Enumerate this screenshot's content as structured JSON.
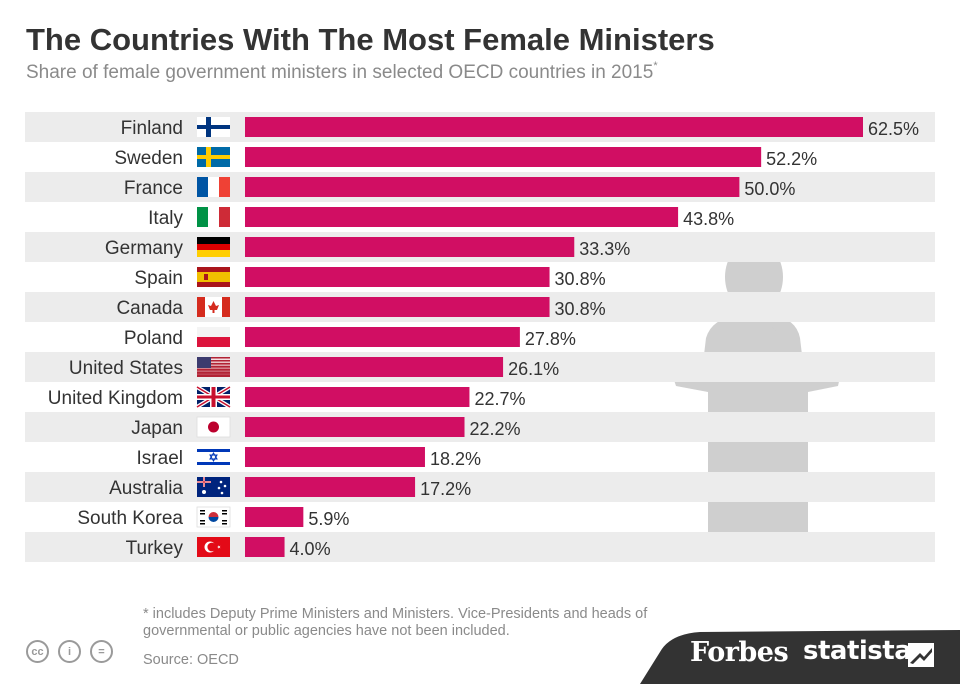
{
  "header": {
    "title": "The Countries With The Most Female Ministers",
    "subtitle": "Share of female government ministers in selected OECD countries in 2015",
    "subtitle_mark": "*"
  },
  "chart_data": {
    "type": "bar",
    "orientation": "horizontal",
    "title": "The Countries With The Most Female Ministers",
    "subtitle": "Share of female government ministers in selected OECD countries in 2015*",
    "categories": [
      "Finland",
      "Sweden",
      "France",
      "Italy",
      "Germany",
      "Spain",
      "Canada",
      "Poland",
      "United States",
      "United Kingdom",
      "Japan",
      "Israel",
      "Australia",
      "South Korea",
      "Turkey"
    ],
    "values": [
      62.5,
      52.2,
      50.0,
      43.8,
      33.3,
      30.8,
      30.8,
      27.8,
      26.1,
      22.7,
      22.2,
      18.2,
      17.2,
      5.9,
      4.0
    ],
    "labels": [
      "62.5%",
      "52.2%",
      "50.0%",
      "43.8%",
      "33.3%",
      "30.8%",
      "30.8%",
      "27.8%",
      "26.1%",
      "22.7%",
      "22.2%",
      "18.2%",
      "17.2%",
      "5.9%",
      "4.0%"
    ],
    "flags": [
      "finland-flag-icon",
      "sweden-flag-icon",
      "france-flag-icon",
      "italy-flag-icon",
      "germany-flag-icon",
      "spain-flag-icon",
      "canada-flag-icon",
      "poland-flag-icon",
      "united-states-flag-icon",
      "united-kingdom-flag-icon",
      "japan-flag-icon",
      "israel-flag-icon",
      "australia-flag-icon",
      "south-korea-flag-icon",
      "turkey-flag-icon"
    ],
    "xlim": [
      0,
      62.5
    ],
    "unit": "%",
    "bar_color": "#d10e63",
    "stripe_color": "#ececec"
  },
  "footer": {
    "footnote": "* includes Deputy Prime Ministers and Ministers. Vice-Presidents and heads of governmental or public agencies have not been included.",
    "source": "Source: OECD",
    "license_icons": [
      "cc",
      "i",
      "="
    ],
    "brand_forbes": "Forbes",
    "brand_statista": "statista"
  },
  "colors": {
    "title": "#333333",
    "muted": "#8a8a8a",
    "bar": "#d10e63",
    "podium": "#c8c8c8",
    "footer_band": "#333333"
  }
}
